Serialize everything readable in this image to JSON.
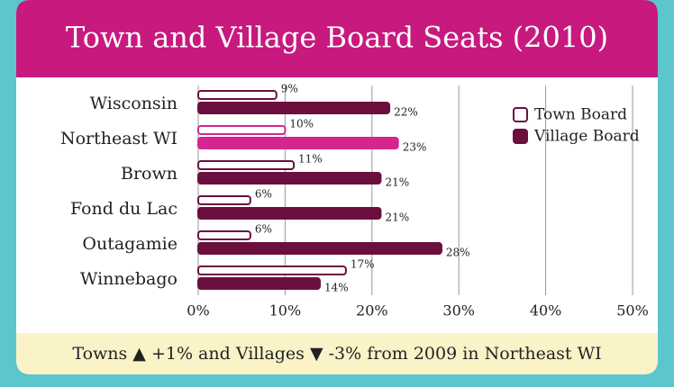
{
  "chart_data": {
    "type": "bar",
    "title": "Town and Village Board Seats (2010)",
    "categories": [
      "Wisconsin",
      "Northeast WI",
      "Brown",
      "Fond du Lac",
      "Outagamie",
      "Winnebago"
    ],
    "series": [
      {
        "name": "Town Board",
        "color": "#6b0f3f",
        "fill": "#ffffff",
        "values": [
          9,
          10,
          11,
          6,
          6,
          17
        ],
        "value_labels": [
          "9%",
          "10%",
          "11%",
          "6%",
          "6%",
          "17%"
        ]
      },
      {
        "name": "Village Board",
        "color": "#6b0f3f",
        "fill": "#6b0f3f",
        "values": [
          22,
          23,
          21,
          21,
          28,
          14
        ],
        "value_labels": [
          "22%",
          "23%",
          "21%",
          "21%",
          "28%",
          "14%"
        ]
      }
    ],
    "highlight_category": "Northeast WI",
    "highlight_color": "#d6258f",
    "xlim": [
      0,
      50
    ],
    "xticks": [
      {
        "value": 0,
        "label": "0%"
      },
      {
        "value": 10,
        "label": "10%"
      },
      {
        "value": 20,
        "label": "20%"
      },
      {
        "value": 30,
        "label": "30%"
      },
      {
        "value": 40,
        "label": "40%"
      },
      {
        "value": 50,
        "label": "50%"
      }
    ],
    "grid": true,
    "legend": "upper right",
    "annotation": "Towns ▲ +1% and Villages ▼ -3% from 2009 in Northeast WI"
  }
}
